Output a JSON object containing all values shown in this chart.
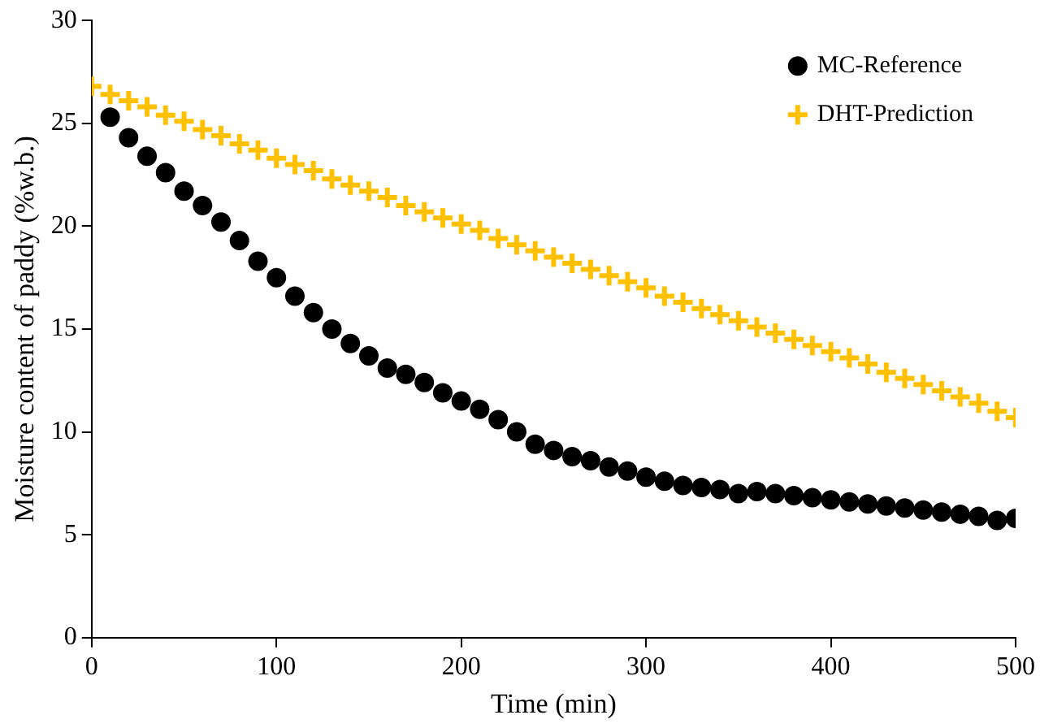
{
  "chart_data": {
    "type": "scatter",
    "xlabel": "Time (min)",
    "ylabel": "Moisture content of paddy (%w.b.)",
    "xlim": [
      0,
      500
    ],
    "xticks": [
      0,
      100,
      200,
      300,
      400,
      500
    ],
    "ylim": [
      0,
      30
    ],
    "yticks": [
      0,
      5,
      10,
      15,
      20,
      25,
      30
    ],
    "grid": false,
    "legend": "top right",
    "series": [
      {
        "name": "MC-Reference",
        "color": "#000000",
        "marker": "circle",
        "x": [
          10,
          20,
          30,
          40,
          50,
          60,
          70,
          80,
          90,
          100,
          110,
          120,
          130,
          140,
          150,
          160,
          170,
          180,
          190,
          200,
          210,
          220,
          230,
          240,
          250,
          260,
          270,
          280,
          290,
          300,
          310,
          320,
          330,
          340,
          350,
          360,
          370,
          380,
          390,
          400,
          410,
          420,
          430,
          440,
          450,
          460,
          470,
          480,
          490,
          500
        ],
        "values": [
          25.3,
          24.3,
          23.4,
          22.6,
          21.7,
          21.0,
          20.2,
          19.3,
          18.3,
          17.5,
          16.6,
          15.8,
          15.0,
          14.3,
          13.7,
          13.1,
          12.8,
          12.4,
          11.9,
          11.5,
          11.1,
          10.6,
          10.0,
          9.4,
          9.1,
          8.8,
          8.6,
          8.3,
          8.1,
          7.8,
          7.6,
          7.4,
          7.3,
          7.2,
          7.0,
          7.1,
          7.0,
          6.9,
          6.8,
          6.7,
          6.6,
          6.5,
          6.4,
          6.3,
          6.2,
          6.1,
          6.0,
          5.9,
          5.7,
          5.8
        ]
      },
      {
        "name": "DHT-Prediction",
        "color": "#ffc000",
        "marker": "cross",
        "x": [
          0,
          10,
          20,
          30,
          40,
          50,
          60,
          70,
          80,
          90,
          100,
          110,
          120,
          130,
          140,
          150,
          160,
          170,
          180,
          190,
          200,
          210,
          220,
          230,
          240,
          250,
          260,
          270,
          280,
          290,
          300,
          310,
          320,
          330,
          340,
          350,
          360,
          370,
          380,
          390,
          400,
          410,
          420,
          430,
          440,
          450,
          460,
          470,
          480,
          490,
          500
        ],
        "values": [
          26.8,
          26.4,
          26.1,
          25.8,
          25.4,
          25.1,
          24.7,
          24.4,
          24.0,
          23.7,
          23.3,
          23.0,
          22.7,
          22.3,
          22.0,
          21.7,
          21.4,
          21.0,
          20.7,
          20.4,
          20.1,
          19.8,
          19.4,
          19.1,
          18.8,
          18.5,
          18.2,
          17.9,
          17.6,
          17.3,
          17.0,
          16.6,
          16.3,
          16.0,
          15.7,
          15.4,
          15.1,
          14.8,
          14.5,
          14.2,
          13.9,
          13.6,
          13.3,
          12.9,
          12.6,
          12.3,
          12.0,
          11.7,
          11.4,
          11.0,
          10.7
        ]
      }
    ]
  }
}
